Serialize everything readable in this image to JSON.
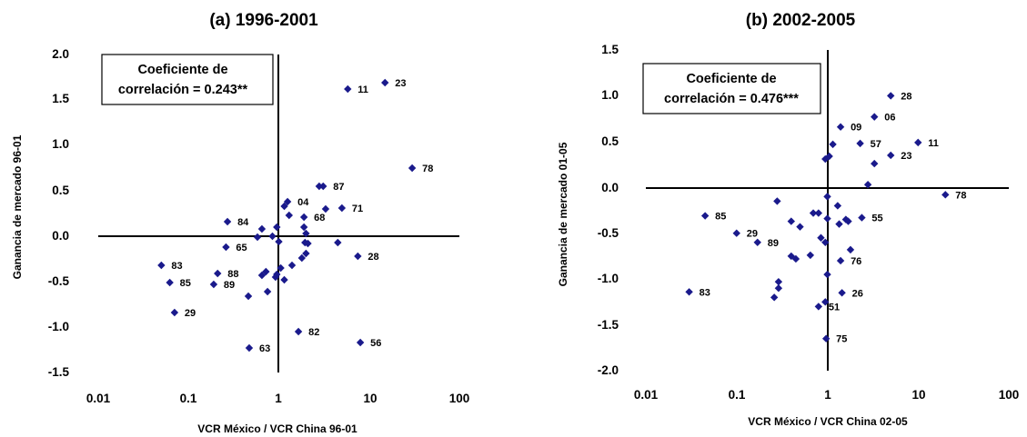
{
  "chart_data": [
    {
      "type": "scatter",
      "title": "(a) 1996-2001",
      "xlabel": "VCR México / VCR China 96-01",
      "ylabel": "Ganancia de mercado 96-01",
      "x_scale": "log",
      "xlim": [
        0.01,
        100
      ],
      "ylim": [
        -1.5,
        2.0
      ],
      "x_ticks": [
        "0.01",
        "0.1",
        "1",
        "10",
        "100"
      ],
      "y_ticks": [
        "2.0",
        "1.5",
        "1.0",
        "0.5",
        "0.0",
        "-0.5",
        "-1.0",
        "-1.5"
      ],
      "annotation_lines": [
        "Coeficiente de",
        "correlación = 0.243**"
      ],
      "marker_color": "#1a1a8c",
      "points": [
        {
          "x": 5.8,
          "y": 1.62,
          "label": "11"
        },
        {
          "x": 15,
          "y": 1.69,
          "label": "23"
        },
        {
          "x": 30,
          "y": 0.75,
          "label": "78"
        },
        {
          "x": 3.1,
          "y": 0.55,
          "label": "87"
        },
        {
          "x": 2.8,
          "y": 0.55
        },
        {
          "x": 1.15,
          "y": 0.33
        },
        {
          "x": 1.25,
          "y": 0.38,
          "label": "04"
        },
        {
          "x": 3.3,
          "y": 0.3
        },
        {
          "x": 5.0,
          "y": 0.31,
          "label": "71"
        },
        {
          "x": 1.3,
          "y": 0.23
        },
        {
          "x": 1.9,
          "y": 0.21,
          "label": "68"
        },
        {
          "x": 0.27,
          "y": 0.16,
          "label": "84"
        },
        {
          "x": 0.95,
          "y": 0.1
        },
        {
          "x": 1.9,
          "y": 0.1
        },
        {
          "x": 0.65,
          "y": 0.08
        },
        {
          "x": 2.0,
          "y": 0.03
        },
        {
          "x": 0.58,
          "y": -0.01
        },
        {
          "x": 0.85,
          "y": 0.0
        },
        {
          "x": 0.26,
          "y": -0.12,
          "label": "65"
        },
        {
          "x": 1.95,
          "y": -0.07
        },
        {
          "x": 2.1,
          "y": -0.08
        },
        {
          "x": 4.5,
          "y": -0.07
        },
        {
          "x": 1.0,
          "y": -0.06
        },
        {
          "x": 2.0,
          "y": -0.19
        },
        {
          "x": 1.8,
          "y": -0.24
        },
        {
          "x": 7.5,
          "y": -0.22,
          "label": "28"
        },
        {
          "x": 1.4,
          "y": -0.32
        },
        {
          "x": 1.05,
          "y": -0.35
        },
        {
          "x": 0.05,
          "y": -0.32,
          "label": "83"
        },
        {
          "x": 0.21,
          "y": -0.41,
          "label": "88"
        },
        {
          "x": 0.72,
          "y": -0.39
        },
        {
          "x": 0.65,
          "y": -0.43
        },
        {
          "x": 0.95,
          "y": -0.42
        },
        {
          "x": 0.92,
          "y": -0.45
        },
        {
          "x": 1.15,
          "y": -0.48
        },
        {
          "x": 0.062,
          "y": -0.51,
          "label": "85"
        },
        {
          "x": 0.19,
          "y": -0.53,
          "label": "89"
        },
        {
          "x": 0.75,
          "y": -0.61
        },
        {
          "x": 0.46,
          "y": -0.66
        },
        {
          "x": 0.07,
          "y": -0.84,
          "label": "29"
        },
        {
          "x": 1.65,
          "y": -1.05,
          "label": "82"
        },
        {
          "x": 8.0,
          "y": -1.17,
          "label": "56"
        },
        {
          "x": 0.47,
          "y": -1.23,
          "label": "63"
        }
      ]
    },
    {
      "type": "scatter",
      "title": "(b) 2002-2005",
      "xlabel": "VCR México / VCR China 02-05",
      "ylabel": "Ganancia de mercado 01-05",
      "x_scale": "log",
      "xlim": [
        0.01,
        100
      ],
      "ylim": [
        -2.0,
        1.5
      ],
      "x_ticks": [
        "0.01",
        "0.1",
        "1",
        "10",
        "100"
      ],
      "y_ticks": [
        "1.5",
        "1.0",
        "0.5",
        "0.0",
        "-0.5",
        "-1.0",
        "-1.5",
        "-2.0"
      ],
      "annotation_lines": [
        "Coeficiente de",
        "correlación = 0.476***"
      ],
      "marker_color": "#1a1a8c",
      "points": [
        {
          "x": 5,
          "y": 1.0,
          "label": "28"
        },
        {
          "x": 3.3,
          "y": 0.77,
          "label": "06"
        },
        {
          "x": 1.4,
          "y": 0.66,
          "label": "09"
        },
        {
          "x": 10,
          "y": 0.49,
          "label": "11"
        },
        {
          "x": 2.3,
          "y": 0.48,
          "label": "57"
        },
        {
          "x": 1.15,
          "y": 0.47
        },
        {
          "x": 0.95,
          "y": 0.31
        },
        {
          "x": 1.05,
          "y": 0.34
        },
        {
          "x": 5,
          "y": 0.35,
          "label": "23"
        },
        {
          "x": 3.3,
          "y": 0.26
        },
        {
          "x": 2.8,
          "y": 0.03
        },
        {
          "x": 20,
          "y": -0.08,
          "label": "78"
        },
        {
          "x": 1.0,
          "y": -0.1
        },
        {
          "x": 0.28,
          "y": -0.15
        },
        {
          "x": 1.3,
          "y": -0.2
        },
        {
          "x": 0.045,
          "y": -0.31,
          "label": "85"
        },
        {
          "x": 0.7,
          "y": -0.28
        },
        {
          "x": 0.8,
          "y": -0.28
        },
        {
          "x": 0.4,
          "y": -0.37
        },
        {
          "x": 1.0,
          "y": -0.34
        },
        {
          "x": 1.6,
          "y": -0.35
        },
        {
          "x": 1.7,
          "y": -0.37
        },
        {
          "x": 1.35,
          "y": -0.4
        },
        {
          "x": 2.4,
          "y": -0.33,
          "label": "55"
        },
        {
          "x": 0.1,
          "y": -0.5,
          "label": "29"
        },
        {
          "x": 0.5,
          "y": -0.43
        },
        {
          "x": 0.85,
          "y": -0.55
        },
        {
          "x": 0.95,
          "y": -0.6
        },
        {
          "x": 0.17,
          "y": -0.6,
          "label": "89"
        },
        {
          "x": 1.8,
          "y": -0.68
        },
        {
          "x": 0.4,
          "y": -0.75
        },
        {
          "x": 0.45,
          "y": -0.78
        },
        {
          "x": 0.65,
          "y": -0.74
        },
        {
          "x": 1.4,
          "y": -0.8,
          "label": "76"
        },
        {
          "x": 1.0,
          "y": -0.95
        },
        {
          "x": 0.29,
          "y": -1.03
        },
        {
          "x": 0.29,
          "y": -1.1
        },
        {
          "x": 0.26,
          "y": -1.2
        },
        {
          "x": 0.03,
          "y": -1.14,
          "label": "83"
        },
        {
          "x": 1.45,
          "y": -1.15,
          "label": "26"
        },
        {
          "x": 0.95,
          "y": -1.25
        },
        {
          "x": 0.8,
          "y": -1.3,
          "label": "51"
        },
        {
          "x": 0.97,
          "y": -1.65,
          "label": "75"
        }
      ]
    }
  ]
}
